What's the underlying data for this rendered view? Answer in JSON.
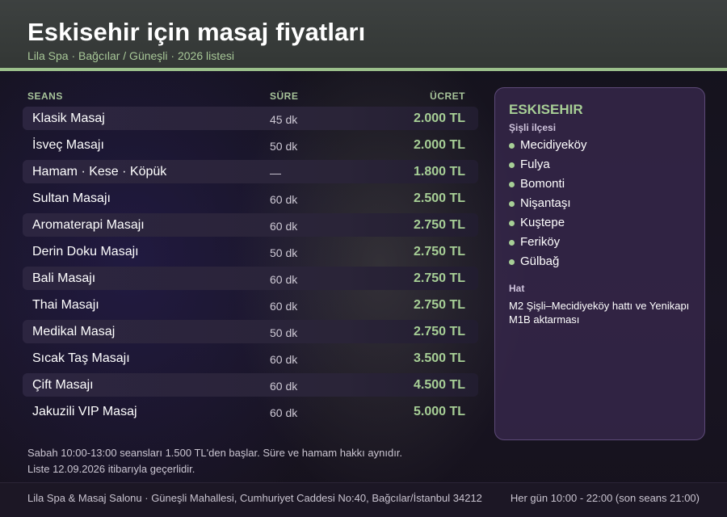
{
  "header": {
    "title": "Eskisehir için masaj fiyatları",
    "subtitle": "Lila Spa · Bağcılar / Güneşli · 2026 listesi"
  },
  "table": {
    "columns": [
      "SEANS",
      "SÜRE",
      "ÜCRET"
    ],
    "rows": [
      {
        "name": "Klasik Masaj",
        "duration": "45 dk",
        "price": "2.000 TL"
      },
      {
        "name": "İsveç Masajı",
        "duration": "50 dk",
        "price": "2.000 TL"
      },
      {
        "name": "Hamam · Kese · Köpük",
        "duration": "—",
        "price": "1.800 TL"
      },
      {
        "name": "Sultan Masajı",
        "duration": "60 dk",
        "price": "2.500 TL"
      },
      {
        "name": "Aromaterapi Masajı",
        "duration": "60 dk",
        "price": "2.750 TL"
      },
      {
        "name": "Derin Doku Masajı",
        "duration": "50 dk",
        "price": "2.750 TL"
      },
      {
        "name": "Bali Masajı",
        "duration": "60 dk",
        "price": "2.750 TL"
      },
      {
        "name": "Thai Masajı",
        "duration": "60 dk",
        "price": "2.750 TL"
      },
      {
        "name": "Medikal Masaj",
        "duration": "50 dk",
        "price": "2.750 TL"
      },
      {
        "name": "Sıcak Taş Masajı",
        "duration": "60 dk",
        "price": "3.500 TL"
      },
      {
        "name": "Çift Masajı",
        "duration": "60 dk",
        "price": "4.500 TL"
      },
      {
        "name": "Jakuzili VIP Masaj",
        "duration": "60 dk",
        "price": "5.000 TL"
      }
    ]
  },
  "panel": {
    "city": "ESKISEHIR",
    "district": "Şişli ilçesi",
    "neighborhoods": [
      "Mecidiyeköy",
      "Fulya",
      "Bomonti",
      "Nişantaşı",
      "Kuştepe",
      "Feriköy",
      "Gülbağ"
    ],
    "line_label": "Hat",
    "line_text": "M2 Şişli–Mecidiyeköy hattı ve Yenikapı M1B aktarması"
  },
  "notes": {
    "line1": "Sabah 10:00-13:00 seansları 1.500 TL'den başlar. Süre ve hamam hakkı aynıdır.",
    "line2": "Liste 12.09.2026 itibarıyla geçerlidir."
  },
  "footer": {
    "address": "Lila Spa & Masaj Salonu · Güneşli Mahallesi, Cumhuriyet Caddesi No:40, Bağcılar/İstanbul 34212",
    "hours": "Her gün 10:00 - 22:00 (son seans 21:00)"
  },
  "colors": {
    "accent": "#a7cf96",
    "header_bg": "#3a3e3d",
    "panel_bg": "#3a2a50"
  }
}
